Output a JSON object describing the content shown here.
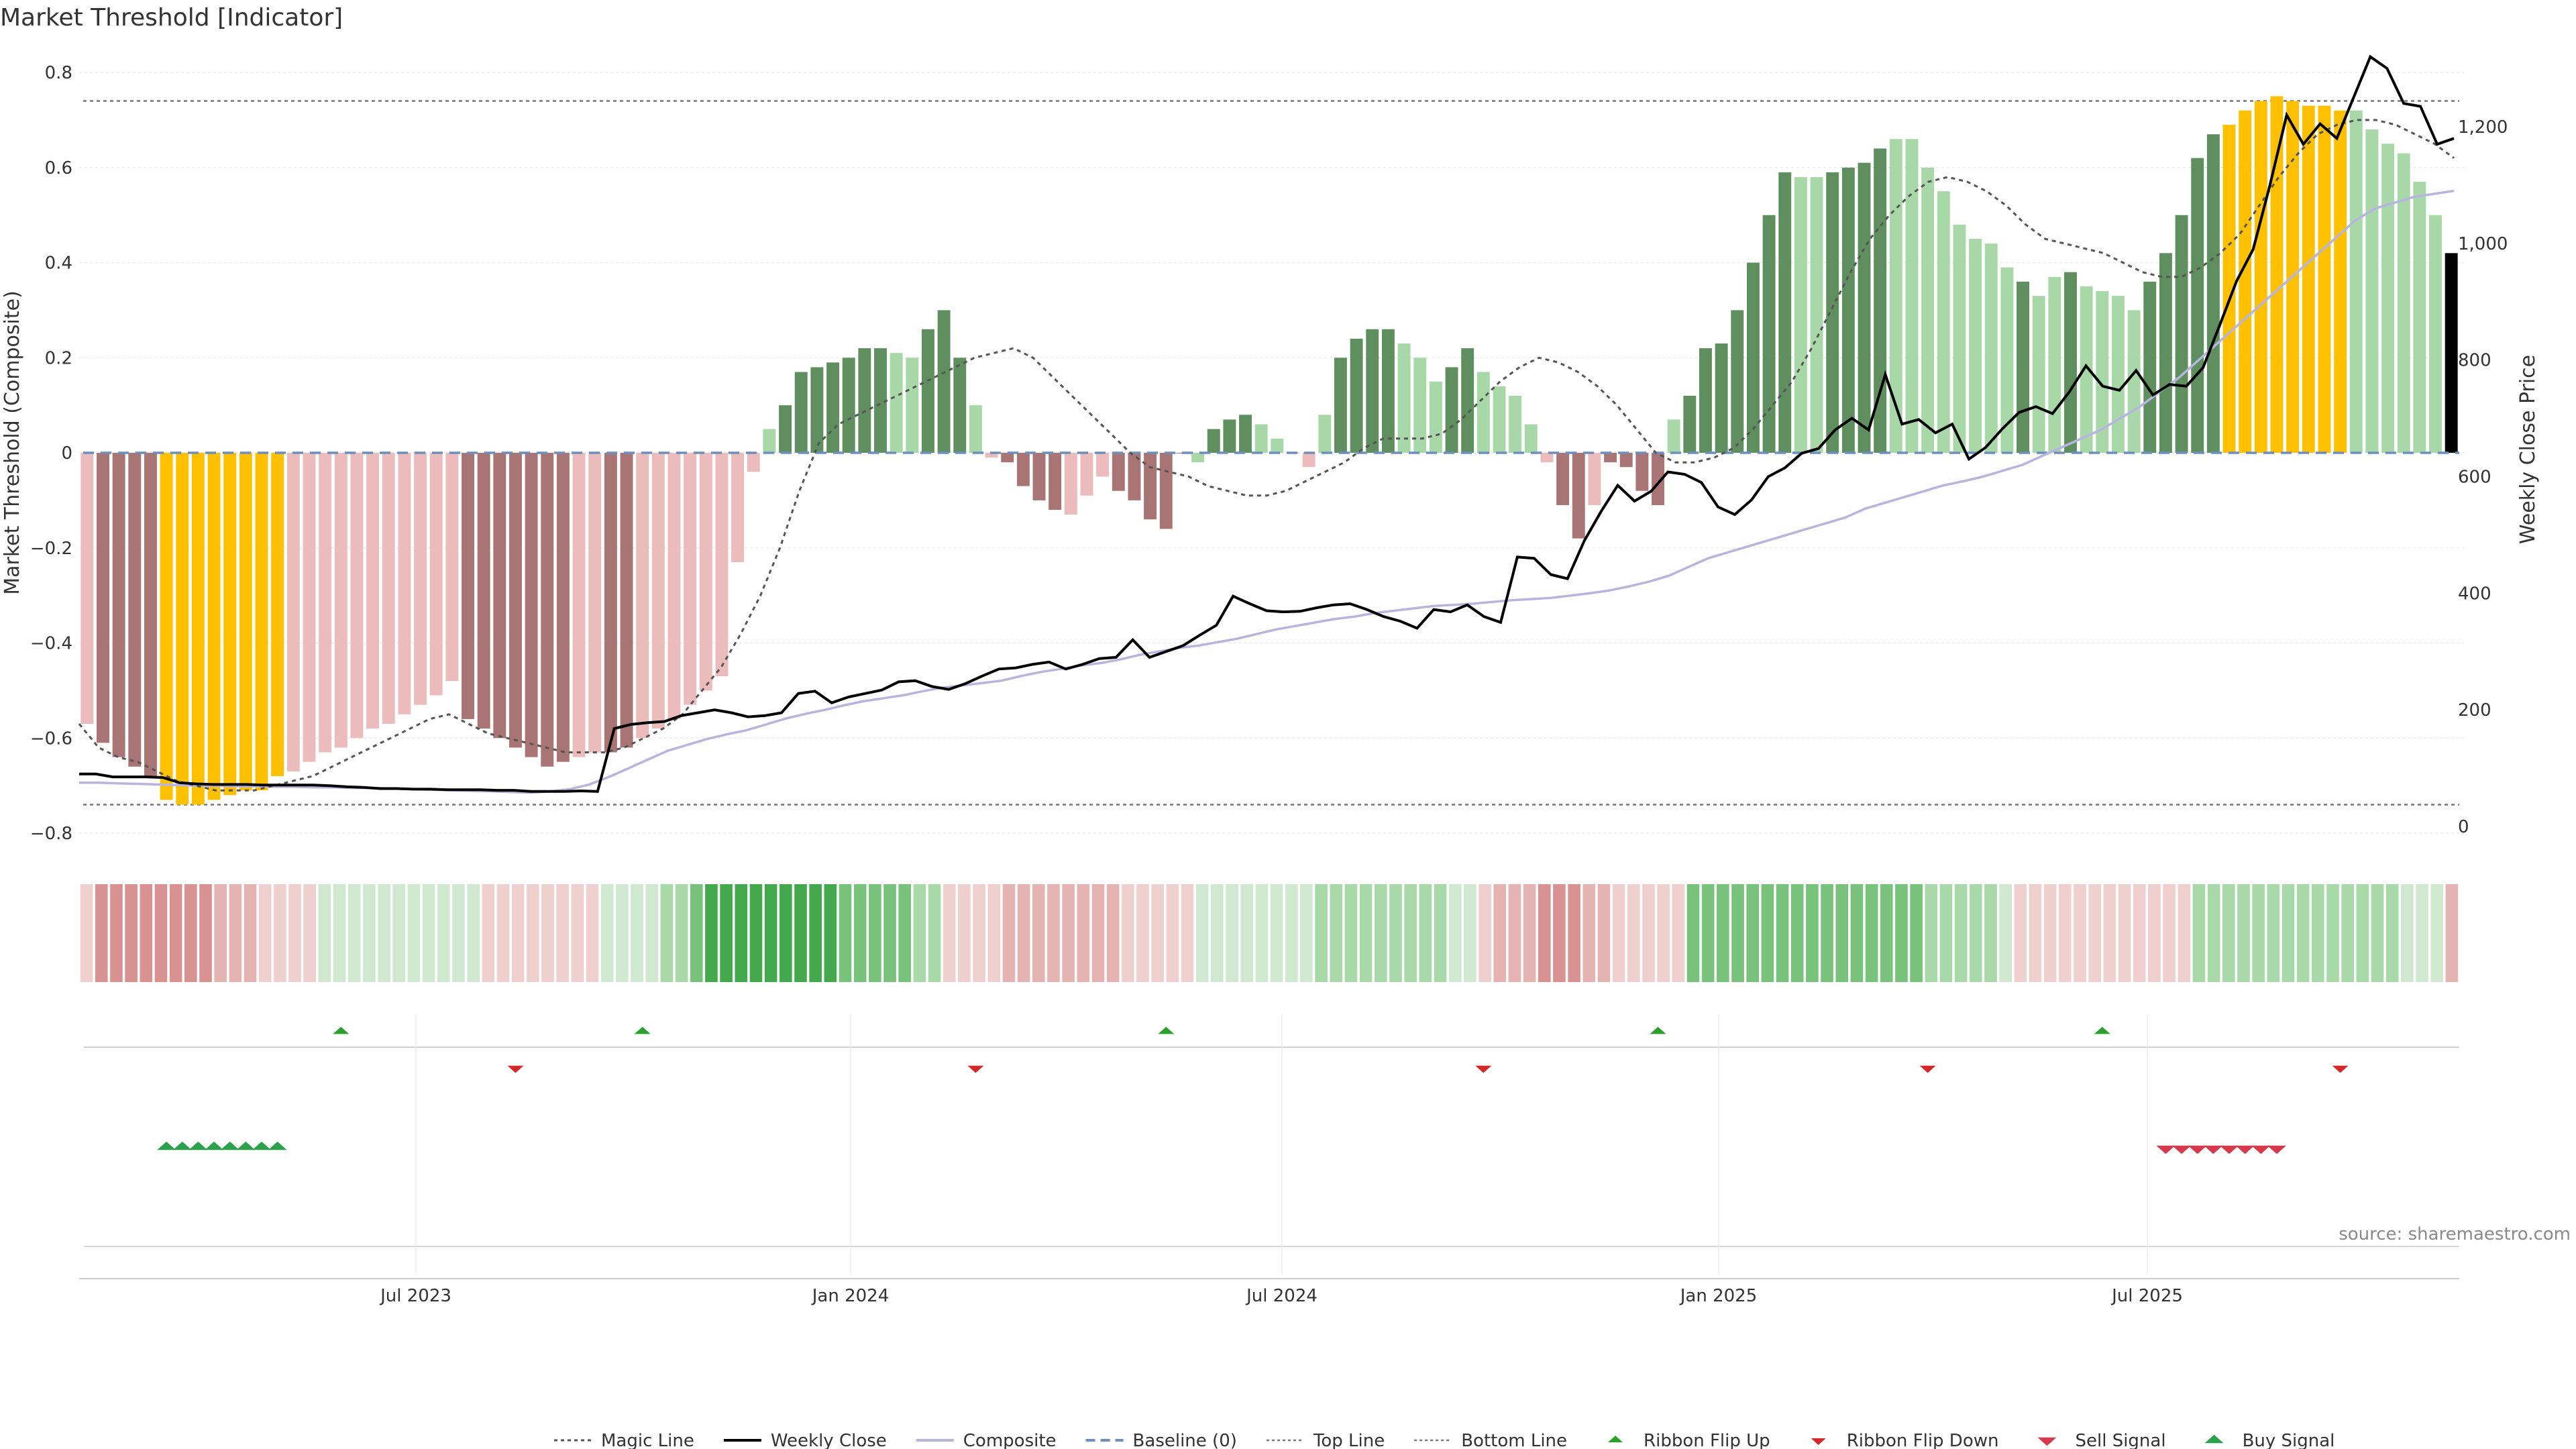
{
  "title": "Market Threshold [Indicator]",
  "source": "source: sharemaestro.com",
  "colors": {
    "strong_pos": "#5f8f5f",
    "weak_pos": "#a8d8a8",
    "strong_neg": "#a87474",
    "weak_neg": "#ecbcbc",
    "extreme": "#ffc000",
    "close": "#000000",
    "composite": "#b8b4e0",
    "magic": "#555555",
    "baseline": "#6a8fc0",
    "threshold": "#777777",
    "flip_up": "#2ca02c",
    "flip_down": "#d62728",
    "sell": "#d6394a",
    "buy": "#2ca04a",
    "ribbon_green": "#3ea64a",
    "ribbon_red": "#d98a8a"
  },
  "chart_data": {
    "type": "bar",
    "ylabel": "Market Threshold (Composite)",
    "y2label": "Weekly Close Price",
    "ylim": [
      -0.8,
      0.8
    ],
    "yticks": [
      "0.8",
      "0.6",
      "0.4",
      "0.2",
      "0",
      "−0.2",
      "−0.4",
      "−0.6",
      "−0.8"
    ],
    "y2lim": [
      0,
      1300
    ],
    "y2ticks": [
      "1,200",
      "1,000",
      "800",
      "600",
      "400",
      "200",
      "0"
    ],
    "xticks": [
      "Jul 2023",
      "Jan 2024",
      "Jul 2024",
      "Jan 2025",
      "Jul 2025"
    ],
    "top_line": 0.74,
    "bottom_line": -0.74,
    "composite": [
      -0.57,
      -0.61,
      -0.64,
      -0.66,
      -0.68,
      -0.73,
      -0.74,
      -0.74,
      -0.73,
      -0.72,
      -0.71,
      -0.71,
      -0.68,
      -0.67,
      -0.65,
      -0.63,
      -0.62,
      -0.6,
      -0.58,
      -0.57,
      -0.55,
      -0.53,
      -0.51,
      -0.48,
      -0.56,
      -0.58,
      -0.6,
      -0.62,
      -0.64,
      -0.66,
      -0.65,
      -0.64,
      -0.63,
      -0.63,
      -0.62,
      -0.6,
      -0.58,
      -0.56,
      -0.53,
      -0.5,
      -0.47,
      -0.23,
      -0.04,
      0.05,
      0.1,
      0.17,
      0.18,
      0.19,
      0.2,
      0.22,
      0.22,
      0.21,
      0.2,
      0.26,
      0.3,
      0.2,
      0.1,
      -0.01,
      -0.02,
      -0.07,
      -0.1,
      -0.12,
      -0.13,
      -0.09,
      -0.05,
      -0.08,
      -0.1,
      -0.14,
      -0.16,
      0.0,
      -0.02,
      0.05,
      0.07,
      0.08,
      0.06,
      0.03,
      0.0,
      -0.03,
      0.08,
      0.2,
      0.24,
      0.26,
      0.26,
      0.23,
      0.2,
      0.15,
      0.18,
      0.22,
      0.17,
      0.14,
      0.12,
      0.06,
      -0.02,
      -0.11,
      -0.18,
      -0.11,
      -0.02,
      -0.03,
      -0.08,
      -0.11,
      0.07,
      0.12,
      0.22,
      0.23,
      0.3,
      0.4,
      0.5,
      0.59,
      0.58,
      0.58,
      0.59,
      0.6,
      0.61,
      0.64,
      0.66,
      0.66,
      0.6,
      0.55,
      0.48,
      0.45,
      0.44,
      0.39,
      0.36,
      0.33,
      0.37,
      0.38,
      0.35,
      0.34,
      0.33,
      0.3,
      0.36,
      0.42,
      0.5,
      0.62,
      0.67,
      0.69,
      0.72,
      0.74,
      0.75,
      0.74,
      0.73,
      0.73,
      0.72,
      0.72,
      0.68,
      0.65,
      0.63,
      0.57,
      0.5,
      0.42
    ],
    "bar_class": [
      "wn",
      "sn",
      "sn",
      "sn",
      "sn",
      "x",
      "x",
      "x",
      "x",
      "x",
      "x",
      "x",
      "x",
      "wn",
      "wn",
      "wn",
      "wn",
      "wn",
      "wn",
      "wn",
      "wn",
      "wn",
      "wn",
      "wn",
      "sn",
      "sn",
      "sn",
      "sn",
      "sn",
      "sn",
      "sn",
      "wn",
      "wn",
      "sn",
      "sn",
      "wn",
      "wn",
      "wn",
      "wn",
      "wn",
      "wn",
      "wn",
      "wn",
      "wp",
      "sp",
      "sp",
      "sp",
      "sp",
      "sp",
      "sp",
      "sp",
      "wp",
      "wp",
      "sp",
      "sp",
      "sp",
      "wp",
      "wn",
      "sn",
      "sn",
      "sn",
      "sn",
      "wn",
      "wn",
      "wn",
      "sn",
      "sn",
      "sn",
      "sn",
      "sn",
      "wp",
      "sp",
      "sp",
      "sp",
      "wp",
      "wp",
      "wn",
      "wn",
      "wp",
      "sp",
      "sp",
      "sp",
      "sp",
      "wp",
      "wp",
      "wp",
      "sp",
      "sp",
      "wp",
      "wp",
      "wp",
      "wp",
      "wn",
      "sn",
      "sn",
      "wn",
      "sn",
      "sn",
      "sn",
      "sn",
      "wp",
      "sp",
      "sp",
      "sp",
      "sp",
      "sp",
      "sp",
      "sp",
      "wp",
      "wp",
      "sp",
      "sp",
      "sp",
      "sp",
      "wp",
      "wp",
      "wp",
      "wp",
      "wp",
      "wp",
      "wp",
      "wp",
      "sp",
      "wp",
      "wp",
      "sp",
      "wp",
      "wp",
      "wp",
      "wp",
      "sp",
      "sp",
      "sp",
      "sp",
      "sp",
      "x",
      "x",
      "x",
      "x",
      "x",
      "x",
      "x",
      "x",
      "wp",
      "wp",
      "wp",
      "wp",
      "wp",
      "wp"
    ],
    "magic_line": [
      -0.57,
      -0.62,
      -0.64,
      -0.65,
      -0.67,
      -0.69,
      -0.7,
      -0.71,
      -0.71,
      -0.71,
      -0.7,
      -0.69,
      -0.68,
      -0.66,
      -0.64,
      -0.62,
      -0.6,
      -0.58,
      -0.56,
      -0.55,
      -0.57,
      -0.59,
      -0.6,
      -0.61,
      -0.62,
      -0.63,
      -0.63,
      -0.63,
      -0.62,
      -0.6,
      -0.58,
      -0.55,
      -0.5,
      -0.45,
      -0.38,
      -0.3,
      -0.2,
      -0.08,
      0.02,
      0.06,
      0.08,
      0.1,
      0.12,
      0.14,
      0.16,
      0.18,
      0.2,
      0.21,
      0.22,
      0.2,
      0.16,
      0.12,
      0.08,
      0.04,
      0.0,
      -0.03,
      -0.04,
      -0.05,
      -0.07,
      -0.08,
      -0.09,
      -0.09,
      -0.08,
      -0.06,
      -0.04,
      -0.02,
      0.01,
      0.03,
      0.03,
      0.03,
      0.04,
      0.07,
      0.11,
      0.15,
      0.18,
      0.2,
      0.19,
      0.17,
      0.14,
      0.1,
      0.05,
      0.0,
      -0.02,
      -0.02,
      -0.01,
      0.01,
      0.05,
      0.1,
      0.15,
      0.22,
      0.3,
      0.38,
      0.45,
      0.5,
      0.54,
      0.57,
      0.58,
      0.57,
      0.55,
      0.52,
      0.48,
      0.45,
      0.44,
      0.43,
      0.42,
      0.4,
      0.38,
      0.37,
      0.37,
      0.39,
      0.42,
      0.46,
      0.52,
      0.58,
      0.63,
      0.67,
      0.69,
      0.7,
      0.7,
      0.69,
      0.67,
      0.65,
      0.62
    ],
    "weekly_close": [
      90,
      90,
      85,
      85,
      85,
      84,
      75,
      73,
      72,
      72,
      72,
      71,
      71,
      71,
      71,
      70,
      68,
      67,
      65,
      65,
      64,
      64,
      63,
      63,
      63,
      62,
      62,
      60,
      60,
      60,
      61,
      60,
      168,
      175,
      178,
      180,
      190,
      195,
      200,
      195,
      188,
      190,
      195,
      228,
      232,
      212,
      222,
      228,
      234,
      248,
      250,
      240,
      235,
      245,
      258,
      270,
      272,
      278,
      282,
      270,
      278,
      288,
      290,
      320,
      290,
      300,
      310,
      328,
      345,
      395,
      382,
      370,
      368,
      369,
      375,
      380,
      382,
      372,
      360,
      352,
      340,
      372,
      368,
      380,
      360,
      350,
      462,
      460,
      432,
      425,
      490,
      540,
      585,
      558,
      575,
      608,
      604,
      590,
      548,
      535,
      560,
      600,
      615,
      640,
      648,
      680,
      700,
      680,
      775,
      690,
      698,
      675,
      690,
      630,
      650,
      682,
      710,
      720,
      708,
      745,
      790,
      755,
      748,
      782,
      740,
      758,
      755,
      787,
      860,
      935,
      990,
      1100,
      1220,
      1170,
      1205,
      1180,
      1250,
      1320,
      1300,
      1240,
      1235,
      1170,
      1180
    ],
    "composite_line": [
      75,
      75,
      74,
      73,
      72,
      71,
      70,
      70,
      69,
      69,
      68,
      68,
      67,
      67,
      66,
      66,
      65,
      64,
      63,
      62,
      61,
      60,
      59,
      58,
      60,
      64,
      72,
      85,
      100,
      115,
      130,
      140,
      150,
      158,
      165,
      175,
      185,
      193,
      200,
      208,
      215,
      220,
      225,
      232,
      238,
      242,
      246,
      250,
      258,
      265,
      270,
      276,
      280,
      286,
      294,
      300,
      306,
      310,
      316,
      322,
      330,
      338,
      344,
      350,
      356,
      360,
      366,
      370,
      374,
      378,
      380,
      382,
      385,
      388,
      390,
      392,
      396,
      400,
      405,
      412,
      420,
      430,
      445,
      460,
      470,
      480,
      490,
      500,
      510,
      520,
      530,
      545,
      555,
      565,
      575,
      585,
      592,
      600,
      610,
      620,
      635,
      650,
      665,
      680,
      700,
      720,
      745,
      770,
      800,
      830,
      860,
      890,
      920,
      950,
      980,
      1010,
      1040,
      1060,
      1070,
      1080,
      1085,
      1090
    ],
    "ribbon_class": [
      "r1",
      "r3",
      "r3",
      "r3",
      "r3",
      "r3",
      "r3",
      "r3",
      "r3",
      "r2",
      "r2",
      "r2",
      "r1",
      "r1",
      "r1",
      "r1",
      "g1",
      "g1",
      "g1",
      "g1",
      "g1",
      "g1",
      "g1",
      "g1",
      "g1",
      "g1",
      "g1",
      "r1",
      "r1",
      "r1",
      "r1",
      "r1",
      "r1",
      "r1",
      "r1",
      "g1",
      "g1",
      "g1",
      "g1",
      "g2",
      "g2",
      "g3",
      "g4",
      "g4",
      "g4",
      "g4",
      "g4",
      "g4",
      "g4",
      "g4",
      "g4",
      "g3",
      "g3",
      "g3",
      "g3",
      "g3",
      "g2",
      "g2",
      "r1",
      "r1",
      "r1",
      "r1",
      "r2",
      "r2",
      "r2",
      "r2",
      "r2",
      "r2",
      "r2",
      "r2",
      "r1",
      "r1",
      "r1",
      "r1",
      "r1",
      "g1",
      "g1",
      "g1",
      "g1",
      "g1",
      "g1",
      "g1",
      "g1",
      "g2",
      "g2",
      "g2",
      "g2",
      "g2",
      "g2",
      "g2",
      "g2",
      "g2",
      "g1",
      "g1",
      "r1",
      "r2",
      "r2",
      "r2",
      "r3",
      "r3",
      "r3",
      "r2",
      "r2",
      "r1",
      "r1",
      "r1",
      "r1",
      "r1",
      "g3",
      "g3",
      "g3",
      "g3",
      "g3",
      "g3",
      "g3",
      "g3",
      "g3",
      "g3",
      "g3",
      "g3",
      "g3",
      "g3",
      "g3",
      "g3",
      "g2",
      "g2",
      "g2",
      "g2",
      "g2",
      "g1",
      "r1",
      "r1",
      "r1",
      "r1",
      "r1",
      "r1",
      "r1",
      "r1",
      "r1",
      "r1",
      "r1",
      "r1",
      "g2",
      "g2",
      "g2",
      "g2",
      "g2",
      "g2",
      "g2",
      "g2",
      "g2",
      "g2",
      "g2",
      "g2",
      "g2",
      "g2",
      "g1",
      "g1",
      "g1",
      "r2"
    ],
    "ribbon_flip_up": [
      16,
      35,
      68,
      99,
      127
    ],
    "ribbon_flip_down": [
      27,
      56,
      88,
      116,
      142
    ],
    "buy_signal": [
      5,
      6,
      7,
      8,
      9,
      10,
      11,
      12
    ],
    "sell_signal": [
      131,
      132,
      133,
      134,
      135,
      136,
      137,
      138
    ]
  },
  "legend": [
    {
      "key": "magic",
      "label": "Magic Line"
    },
    {
      "key": "close",
      "label": "Weekly Close"
    },
    {
      "key": "composite",
      "label": "Composite"
    },
    {
      "key": "baseline",
      "label": "Baseline (0)"
    },
    {
      "key": "top",
      "label": "Top Line"
    },
    {
      "key": "bottom",
      "label": "Bottom Line"
    },
    {
      "key": "flip_up",
      "label": "Ribbon Flip Up"
    },
    {
      "key": "flip_down",
      "label": "Ribbon Flip Down"
    },
    {
      "key": "sell",
      "label": "Sell Signal"
    },
    {
      "key": "buy",
      "label": "Buy Signal"
    }
  ]
}
